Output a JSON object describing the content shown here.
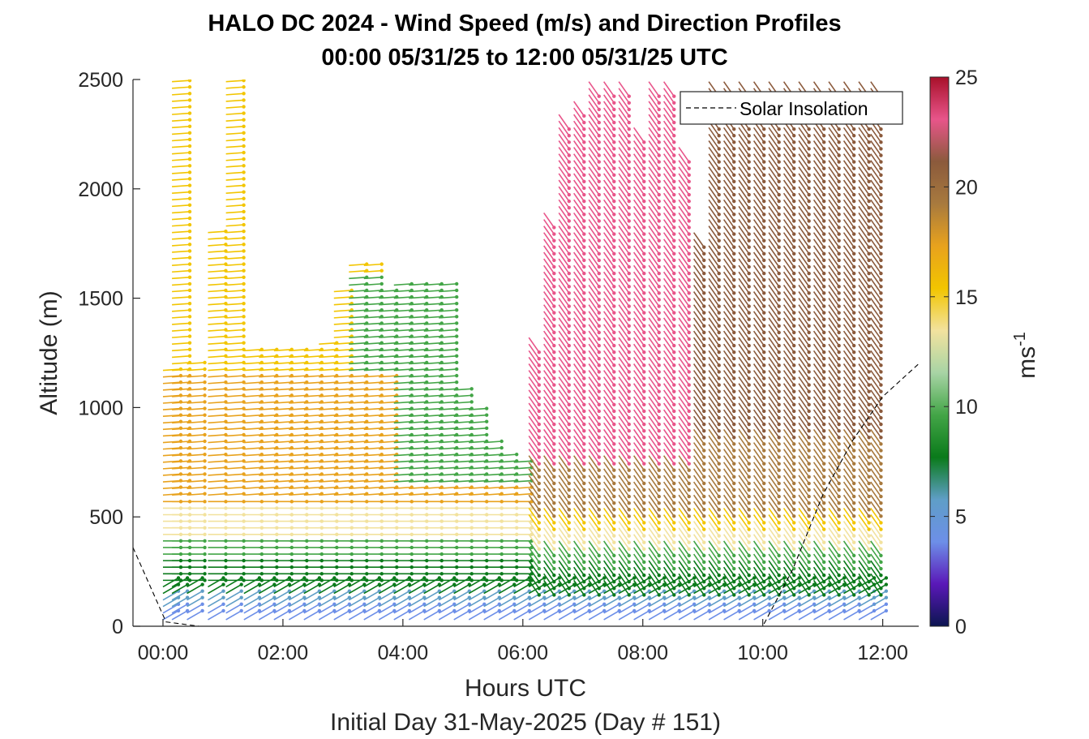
{
  "chart_data": {
    "type": "wind-barb-profile",
    "title": "HALO DC 2024 - Wind Speed (m/s) and Direction Profiles",
    "subtitle": "00:00 05/31/25 to 12:00 05/31/25  UTC",
    "xlabel": "Hours UTC",
    "footer": "Initial Day 31-May-2025 (Day # 151)",
    "ylabel": "Altitude (m)",
    "colorbar_label": "ms",
    "colorbar_label_exp": "-1",
    "xlim": [
      -0.5,
      12.6
    ],
    "ylim": [
      0,
      2500
    ],
    "xticks": [
      0,
      2,
      4,
      6,
      8,
      10,
      12
    ],
    "xtick_labels": [
      "00:00",
      "02:00",
      "04:00",
      "06:00",
      "08:00",
      "10:00",
      "12:00"
    ],
    "yticks": [
      0,
      500,
      1000,
      1500,
      2000,
      2500
    ],
    "ytick_labels": [
      "0",
      "500",
      "1000",
      "1500",
      "2000",
      "2500"
    ],
    "colorbar_ticks": [
      0,
      5,
      10,
      15,
      20,
      25
    ],
    "colorbar_tick_labels": [
      "0",
      "5",
      "10",
      "15",
      "20",
      "25"
    ],
    "legend": {
      "label": "Solar Insolation",
      "position": "top-right",
      "style": "dashed"
    },
    "solar_insolation": {
      "x": [
        -0.5,
        0.05,
        0.6,
        10.0,
        10.5,
        11.0,
        11.5,
        12.0,
        12.6
      ],
      "y": [
        360,
        20,
        0,
        0,
        260,
        600,
        850,
        1050,
        1200
      ]
    },
    "colormap": [
      "#0b1550",
      "#5a18b8",
      "#6d8fe8",
      "#5f9ec7",
      "#0a7a1a",
      "#43a547",
      "#a8d4a5",
      "#f2e29e",
      "#f2c500",
      "#e8a21d",
      "#a87a3e",
      "#8b5a3c",
      "#e8558a",
      "#a8102a"
    ],
    "barb_columns": [
      {
        "t": 0.0,
        "top": 1180
      },
      {
        "t": 0.15,
        "top": 2500
      },
      {
        "t": 0.4,
        "top": 1200
      },
      {
        "t": 0.75,
        "top": 1800
      },
      {
        "t": 1.05,
        "top": 2500
      },
      {
        "t": 1.35,
        "top": 1280
      },
      {
        "t": 1.6,
        "top": 1280
      },
      {
        "t": 1.85,
        "top": 1280
      },
      {
        "t": 2.1,
        "top": 1280
      },
      {
        "t": 2.35,
        "top": 1280
      },
      {
        "t": 2.6,
        "top": 1300
      },
      {
        "t": 2.85,
        "top": 1550
      },
      {
        "t": 3.1,
        "top": 1660
      },
      {
        "t": 3.35,
        "top": 1660
      },
      {
        "t": 3.6,
        "top": 1550
      },
      {
        "t": 3.85,
        "top": 1570
      },
      {
        "t": 4.1,
        "top": 1570
      },
      {
        "t": 4.35,
        "top": 1560
      },
      {
        "t": 4.6,
        "top": 1560
      },
      {
        "t": 4.85,
        "top": 1100
      },
      {
        "t": 5.1,
        "top": 1000
      },
      {
        "t": 5.35,
        "top": 860
      },
      {
        "t": 5.6,
        "top": 800
      },
      {
        "t": 5.85,
        "top": 760
      },
      {
        "t": 6.1,
        "top": 1340
      },
      {
        "t": 6.35,
        "top": 1900
      },
      {
        "t": 6.6,
        "top": 2360
      },
      {
        "t": 6.85,
        "top": 2400
      },
      {
        "t": 7.1,
        "top": 2500
      },
      {
        "t": 7.35,
        "top": 2500
      },
      {
        "t": 7.6,
        "top": 2500
      },
      {
        "t": 7.85,
        "top": 2300
      },
      {
        "t": 8.1,
        "top": 2500
      },
      {
        "t": 8.35,
        "top": 2500
      },
      {
        "t": 8.6,
        "top": 2200
      },
      {
        "t": 8.85,
        "top": 1800
      },
      {
        "t": 9.1,
        "top": 2500
      },
      {
        "t": 9.35,
        "top": 2500
      },
      {
        "t": 9.6,
        "top": 2500
      },
      {
        "t": 9.85,
        "top": 2500
      },
      {
        "t": 10.1,
        "top": 2500
      },
      {
        "t": 10.35,
        "top": 2500
      },
      {
        "t": 10.6,
        "top": 2500
      },
      {
        "t": 10.85,
        "top": 2500
      },
      {
        "t": 11.1,
        "top": 2500
      },
      {
        "t": 11.35,
        "top": 2500
      },
      {
        "t": 11.6,
        "top": 2500
      },
      {
        "t": 11.8,
        "top": 2500
      }
    ],
    "barb_level_step_m": 30
  }
}
